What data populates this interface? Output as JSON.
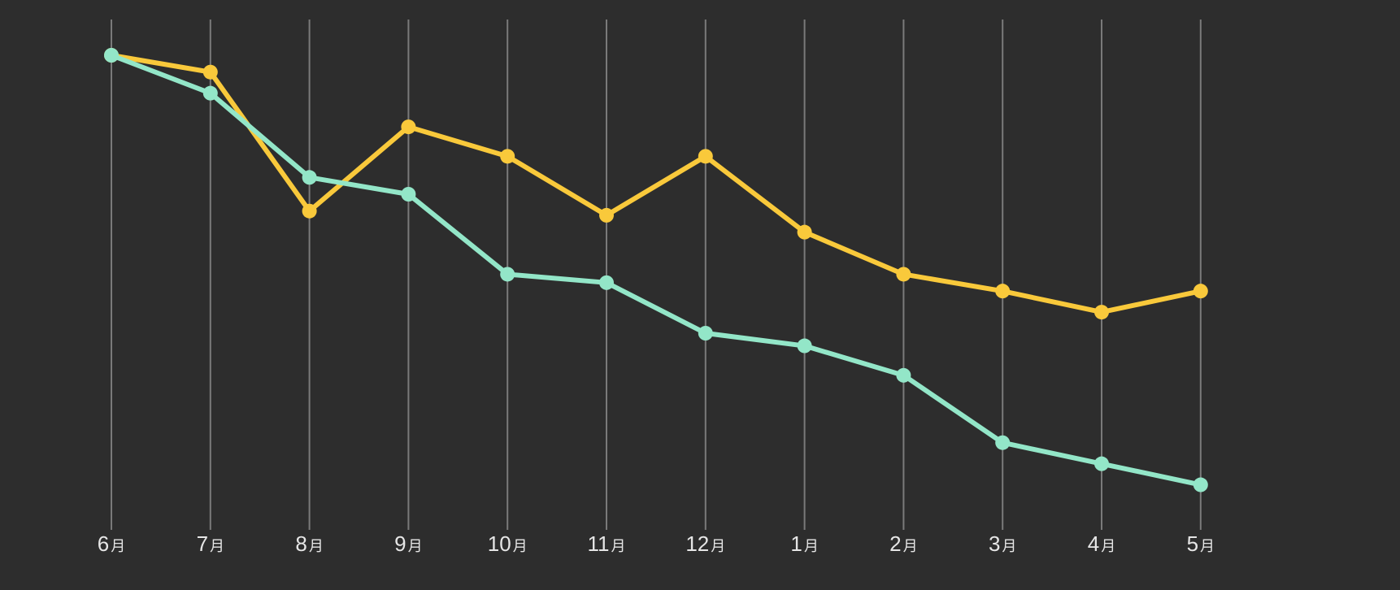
{
  "chart_data": {
    "type": "line",
    "categories": [
      "6",
      "7",
      "8",
      "9",
      "10",
      "11",
      "12",
      "1",
      "2",
      "3",
      "4",
      "5"
    ],
    "category_suffix": "月",
    "series": [
      {
        "color": "#f9c93b",
        "values": [
          100,
          96,
          63,
          83,
          76,
          62,
          76,
          58,
          48,
          44,
          39,
          44
        ]
      },
      {
        "color": "#93e6c8",
        "values": [
          100,
          91,
          71,
          67,
          48,
          46,
          34,
          31,
          24,
          8,
          3,
          -2
        ]
      }
    ],
    "ylim": [
      -10,
      100
    ],
    "grid": "vertical",
    "background": "#2d2d2d",
    "gridline_color": "#7a7a7a"
  }
}
